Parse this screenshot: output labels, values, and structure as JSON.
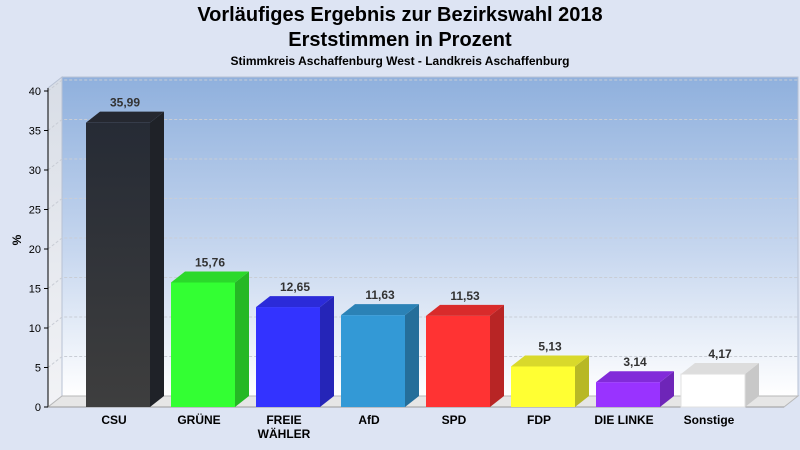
{
  "chart_data": {
    "type": "bar",
    "title": "Vorläufiges Ergebnis zur Bezirkswahl 2018",
    "subtitle": "Erststimmen in Prozent",
    "caption": "Stimmkreis Aschaffenburg West - Landkreis Aschaffenburg",
    "ylabel": "%",
    "ylim": [
      0,
      40
    ],
    "yticks": [
      "0",
      "5",
      "10",
      "15",
      "20",
      "25",
      "30",
      "35",
      "40"
    ],
    "categories": [
      [
        "CSU"
      ],
      [
        "GRÜNE"
      ],
      [
        "FREIE",
        "WÄHLER"
      ],
      [
        "AfD"
      ],
      [
        "SPD"
      ],
      [
        "FDP"
      ],
      [
        "DIE LINKE"
      ],
      [
        "Sonstige"
      ]
    ],
    "values": [
      35.99,
      15.76,
      12.65,
      11.63,
      11.53,
      5.13,
      3.14,
      4.17
    ],
    "value_labels": [
      "35,99",
      "15,76",
      "12,65",
      "11,63",
      "11,53",
      "5,13",
      "3,14",
      "4,17"
    ],
    "colors": [
      "#2b2f38",
      "#33ff33",
      "#3333ff",
      "#3399d6",
      "#ff3333",
      "#ffff33",
      "#9933ff",
      "#ffffff"
    ],
    "grid": true,
    "legend": "none"
  }
}
